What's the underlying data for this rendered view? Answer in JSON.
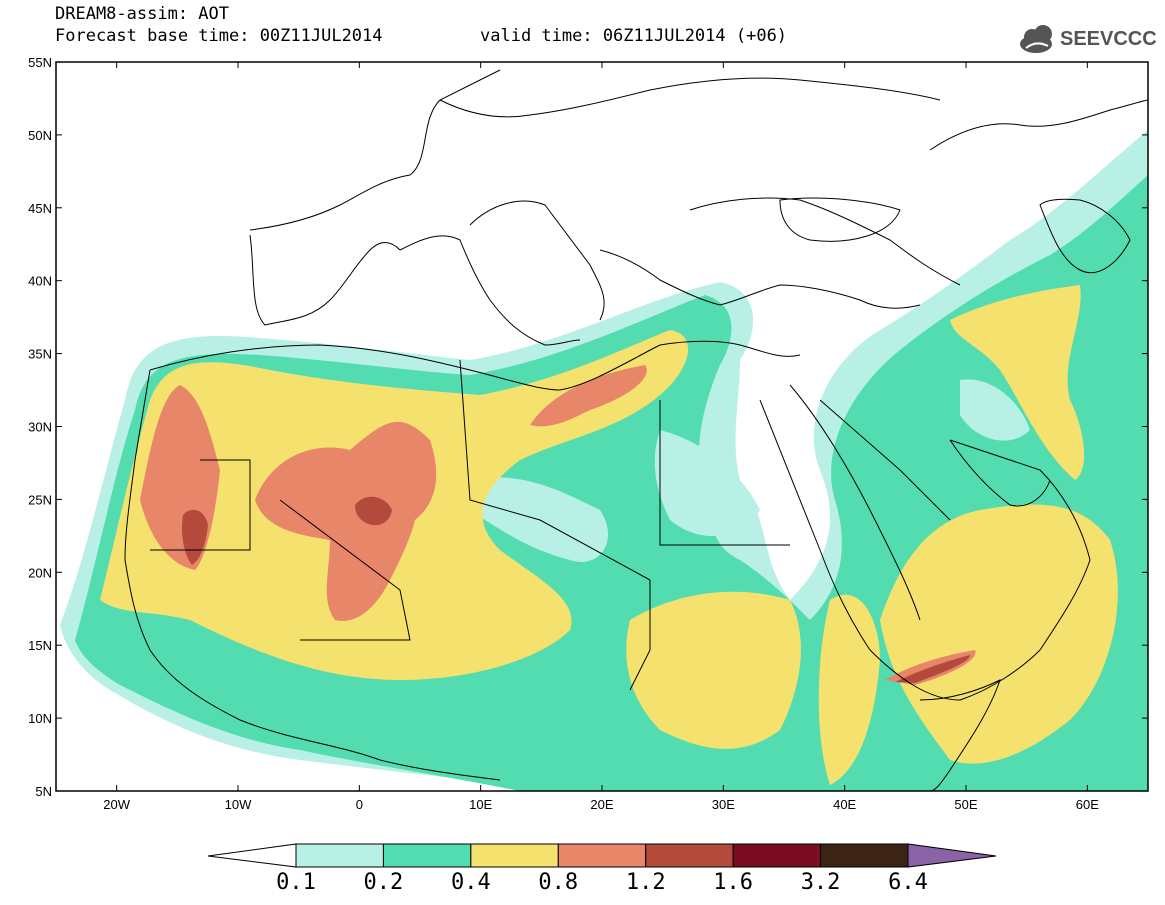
{
  "header": {
    "title": "DREAM8-assim: AOT",
    "base_time": "Forecast base time: 00Z11JUL2014",
    "valid_time": "valid time: 06Z11JUL2014 (+06)"
  },
  "logo": {
    "icon": "cloud-icon",
    "text": "SEEVCCC"
  },
  "map": {
    "lat_labels": [
      "55N",
      "50N",
      "45N",
      "40N",
      "35N",
      "30N",
      "25N",
      "20N",
      "15N",
      "10N",
      "5N"
    ],
    "lon_labels": [
      "20W",
      "10W",
      "0",
      "10E",
      "20E",
      "30E",
      "40E",
      "50E",
      "60E"
    ],
    "extent": {
      "lon": [
        -25,
        65
      ],
      "lat": [
        5,
        55
      ]
    }
  },
  "colorbar": {
    "labels": [
      "0.1",
      "0.2",
      "0.4",
      "0.8",
      "1.2",
      "1.6",
      "3.2",
      "6.4"
    ],
    "colors": [
      "#b8f0e6",
      "#52dcb0",
      "#f5e26e",
      "#e8866a",
      "#b34a3c",
      "#7a0d24",
      "#3c2414",
      "#8a63a6"
    ],
    "under_color": "#ffffff"
  }
}
